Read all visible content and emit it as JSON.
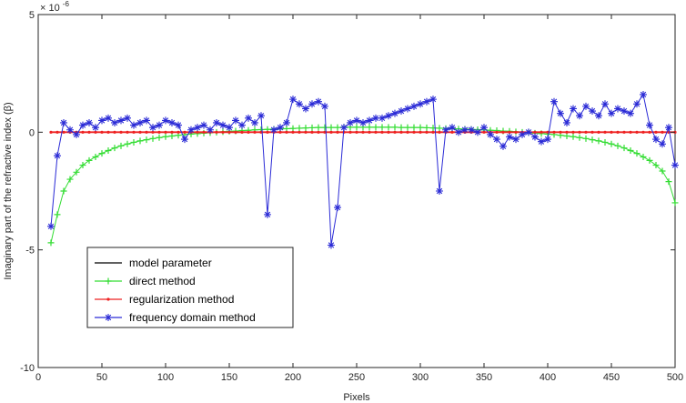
{
  "chart_data": {
    "type": "line",
    "xlabel": "Pixels",
    "ylabel": "Imaginary part of the refractive index (β)",
    "exponent_label": "× 10",
    "exponent_power": "-6",
    "xlim": [
      0,
      500
    ],
    "ylim": [
      -10,
      5
    ],
    "x_ticks": [
      0,
      50,
      100,
      150,
      200,
      250,
      300,
      350,
      400,
      450,
      500
    ],
    "y_ticks": [
      5,
      0,
      -5,
      -10
    ],
    "grid": false,
    "legend_position": "lower-left",
    "x": [
      10,
      15,
      20,
      25,
      30,
      35,
      40,
      45,
      50,
      55,
      60,
      65,
      70,
      75,
      80,
      85,
      90,
      95,
      100,
      105,
      110,
      115,
      120,
      125,
      130,
      135,
      140,
      145,
      150,
      155,
      160,
      165,
      170,
      175,
      180,
      185,
      190,
      195,
      200,
      205,
      210,
      215,
      220,
      225,
      230,
      235,
      240,
      245,
      250,
      255,
      260,
      265,
      270,
      275,
      280,
      285,
      290,
      295,
      300,
      305,
      310,
      315,
      320,
      325,
      330,
      335,
      340,
      345,
      350,
      355,
      360,
      365,
      370,
      375,
      380,
      385,
      390,
      395,
      400,
      405,
      410,
      415,
      420,
      425,
      430,
      435,
      440,
      445,
      450,
      455,
      460,
      465,
      470,
      475,
      480,
      485,
      490,
      495,
      500
    ],
    "series": [
      {
        "name": "model parameter",
        "color": "#000000",
        "marker": "none",
        "values": [
          0,
          0,
          0,
          0,
          0,
          0,
          0,
          0,
          0,
          0,
          0,
          0,
          0,
          0,
          0,
          0,
          0,
          0,
          0,
          0,
          0,
          0,
          0,
          0,
          0,
          0,
          0,
          0,
          0,
          0,
          0,
          0,
          0,
          0,
          0,
          0,
          0,
          0,
          0,
          0,
          0,
          0,
          0,
          0,
          0,
          0,
          0,
          0,
          0,
          0,
          0,
          0,
          0,
          0,
          0,
          0,
          0,
          0,
          0,
          0,
          0,
          0,
          0,
          0,
          0,
          0,
          0,
          0,
          0,
          0,
          0,
          0,
          0,
          0,
          0,
          0,
          0,
          0,
          0,
          0,
          0,
          0,
          0,
          0,
          0,
          0,
          0,
          0,
          0,
          0,
          0,
          0,
          0,
          0,
          0,
          0,
          0,
          0,
          0
        ]
      },
      {
        "name": "direct method",
        "color": "#33dd33",
        "marker": "plus",
        "values": [
          -4.7,
          -3.5,
          -2.5,
          -2.0,
          -1.7,
          -1.4,
          -1.2,
          -1.05,
          -0.9,
          -0.78,
          -0.67,
          -0.58,
          -0.5,
          -0.43,
          -0.37,
          -0.32,
          -0.27,
          -0.23,
          -0.19,
          -0.16,
          -0.13,
          -0.1,
          -0.08,
          -0.06,
          -0.04,
          -0.02,
          0,
          0.02,
          0.04,
          0.05,
          0.07,
          0.08,
          0.1,
          0.11,
          0.12,
          0.13,
          0.14,
          0.15,
          0.16,
          0.17,
          0.18,
          0.19,
          0.2,
          0.2,
          0.2,
          0.2,
          0.21,
          0.21,
          0.21,
          0.21,
          0.21,
          0.21,
          0.21,
          0.21,
          0.21,
          0.2,
          0.2,
          0.2,
          0.2,
          0.19,
          0.18,
          0.17,
          0.16,
          0.15,
          0.14,
          0.13,
          0.12,
          0.11,
          0.1,
          0.08,
          0.07,
          0.05,
          0.04,
          0.02,
          0,
          -0.02,
          -0.04,
          -0.06,
          -0.08,
          -0.1,
          -0.13,
          -0.16,
          -0.19,
          -0.23,
          -0.27,
          -0.32,
          -0.37,
          -0.43,
          -0.5,
          -0.58,
          -0.67,
          -0.78,
          -0.9,
          -1.05,
          -1.2,
          -1.4,
          -1.65,
          -2.1,
          -3.0
        ]
      },
      {
        "name": "regularization method",
        "color": "#ee2222",
        "marker": "dot",
        "values": [
          0,
          0,
          0,
          0,
          0,
          0,
          0,
          0,
          0,
          0,
          0,
          0,
          0,
          0,
          0,
          0,
          0,
          0,
          0,
          0,
          0,
          0,
          0,
          0,
          0,
          0,
          0,
          0,
          0,
          0,
          0,
          0,
          0,
          0,
          0,
          0,
          0,
          0,
          0,
          0,
          0,
          0,
          0,
          0,
          0,
          0,
          0,
          0,
          0,
          0,
          0,
          0,
          0,
          0,
          0,
          0,
          0,
          0,
          0,
          0,
          0,
          0,
          0,
          0,
          0,
          0,
          0,
          0,
          0,
          0,
          0,
          0,
          0,
          0,
          0,
          0,
          0,
          0,
          0,
          0,
          0,
          0,
          0,
          0,
          0,
          0,
          0,
          0,
          0,
          0,
          0,
          0,
          0,
          0,
          0,
          0,
          0,
          0,
          0
        ]
      },
      {
        "name": "frequency domain method",
        "color": "#2a2ad6",
        "marker": "asterisk",
        "values": [
          -4.0,
          -1.0,
          0.4,
          0.1,
          -0.1,
          0.3,
          0.4,
          0.2,
          0.5,
          0.6,
          0.4,
          0.5,
          0.6,
          0.3,
          0.4,
          0.5,
          0.2,
          0.3,
          0.5,
          0.4,
          0.3,
          -0.3,
          0.1,
          0.2,
          0.3,
          0.1,
          0.4,
          0.3,
          0.2,
          0.5,
          0.3,
          0.6,
          0.4,
          0.7,
          -3.5,
          0.1,
          0.2,
          0.4,
          1.4,
          1.2,
          1.0,
          1.2,
          1.3,
          1.1,
          -4.8,
          -3.2,
          0.2,
          0.4,
          0.5,
          0.4,
          0.5,
          0.6,
          0.6,
          0.7,
          0.8,
          0.9,
          1.0,
          1.1,
          1.2,
          1.3,
          1.4,
          -2.5,
          0.1,
          0.2,
          0.0,
          0.1,
          0.1,
          0.0,
          0.2,
          -0.1,
          -0.3,
          -0.6,
          -0.2,
          -0.3,
          -0.1,
          0.0,
          -0.2,
          -0.4,
          -0.3,
          1.3,
          0.8,
          0.4,
          1.0,
          0.7,
          1.1,
          0.9,
          0.7,
          1.2,
          0.8,
          1.0,
          0.9,
          0.8,
          1.2,
          1.6,
          0.3,
          -0.3,
          -0.5,
          0.2,
          -1.4
        ]
      }
    ]
  }
}
